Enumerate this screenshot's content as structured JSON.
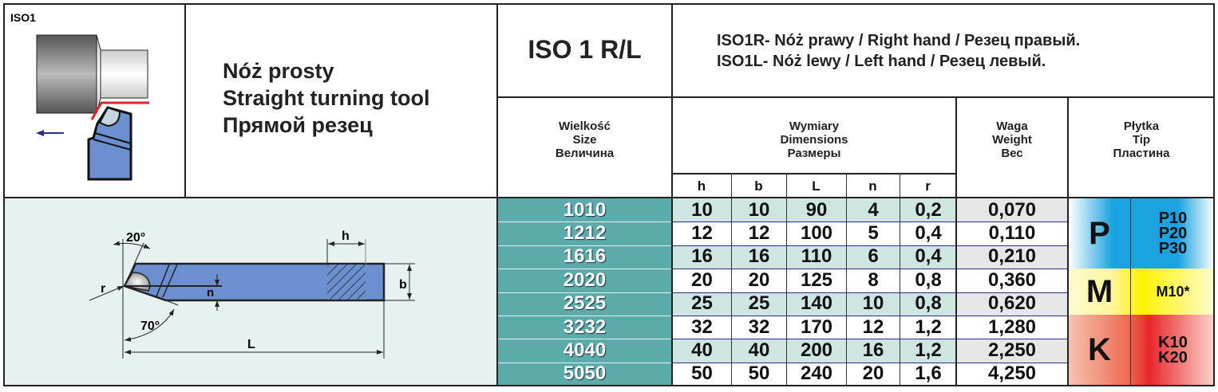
{
  "code_label": "ISO1",
  "title": {
    "pl": "Nóż prosty",
    "en": "Straight turning tool",
    "ru": "Прямой резец"
  },
  "model": "ISO 1 R/L",
  "description": [
    "ISO1R- Nóż prawy / Right hand / Резец правый.",
    "ISO1L- Nóż lewy / Left hand / Резец левый."
  ],
  "headers": {
    "size": [
      "Wielkość",
      "Size",
      "Величина"
    ],
    "dimensions": [
      "Wymiary",
      "Dimensions",
      "Размеры"
    ],
    "weight": [
      "Waga",
      "Weight",
      "Вес"
    ],
    "tip": [
      "Płytka",
      "Tip",
      "Пластина"
    ],
    "dim_cols": [
      "h",
      "b",
      "L",
      "n",
      "r"
    ]
  },
  "diagram": {
    "angle_top": "20°",
    "angle_bottom": "70°",
    "labels": {
      "h": "h",
      "b": "b",
      "L": "L",
      "n": "n",
      "r": "r"
    }
  },
  "rows": [
    {
      "size": "1010",
      "h": "10",
      "b": "10",
      "L": "90",
      "n": "4",
      "r": "0,2",
      "weight": "0,070"
    },
    {
      "size": "1212",
      "h": "12",
      "b": "12",
      "L": "100",
      "n": "5",
      "r": "0,4",
      "weight": "0,110"
    },
    {
      "size": "1616",
      "h": "16",
      "b": "16",
      "L": "110",
      "n": "6",
      "r": "0,4",
      "weight": "0,210"
    },
    {
      "size": "2020",
      "h": "20",
      "b": "20",
      "L": "125",
      "n": "8",
      "r": "0,8",
      "weight": "0,360"
    },
    {
      "size": "2525",
      "h": "25",
      "b": "25",
      "L": "140",
      "n": "10",
      "r": "0,8",
      "weight": "0,620"
    },
    {
      "size": "3232",
      "h": "32",
      "b": "32",
      "L": "170",
      "n": "12",
      "r": "1,2",
      "weight": "1,280"
    },
    {
      "size": "4040",
      "h": "40",
      "b": "40",
      "L": "200",
      "n": "16",
      "r": "1,2",
      "weight": "2,250"
    },
    {
      "size": "5050",
      "h": "50",
      "b": "50",
      "L": "240",
      "n": "20",
      "r": "1,6",
      "weight": "4,250"
    }
  ],
  "grades": [
    {
      "group": "P",
      "grades": [
        "P10",
        "P20",
        "P30"
      ],
      "color": "#1aa3e0"
    },
    {
      "group": "M",
      "grades": [
        "M10*"
      ],
      "color": "#fff200"
    },
    {
      "group": "K",
      "grades": [
        "K10",
        "K20"
      ],
      "color": "#e8262a"
    }
  ],
  "colors": {
    "size_cell": "#5aabaa",
    "alt_row": "#cfe5e2",
    "alt_weight": "#e6e6e6",
    "tool_blue": "#6b8fcf",
    "diagram_bg": "#e8f1f1"
  }
}
